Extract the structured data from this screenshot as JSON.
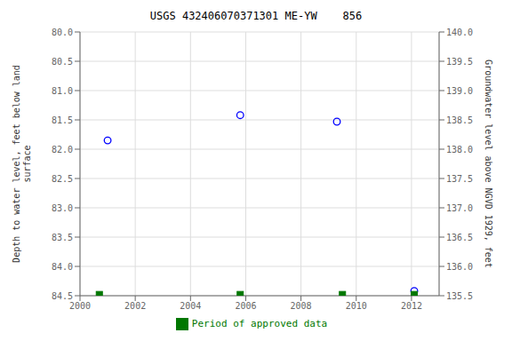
{
  "chart_data": {
    "type": "scatter",
    "title": "USGS 432406070371301 ME-YW    856",
    "y_label": "Depth to water level, feet below land\nsurface",
    "y2_label": "Groundwater level above NGVD 1929, feet",
    "xlim": [
      2000,
      2013
    ],
    "xticks": [
      2000,
      2002,
      2004,
      2006,
      2008,
      2010,
      2012
    ],
    "ylim": [
      84.5,
      80.0
    ],
    "yticks": [
      {
        "value": 80.0,
        "label": "80.0"
      },
      80.5,
      {
        "value": 81.0,
        "label": "81.0"
      },
      81.5,
      {
        "value": 82.0,
        "label": "82.0"
      },
      82.5,
      {
        "value": 83.0,
        "label": "83.0"
      },
      83.5,
      {
        "value": 84.0,
        "label": "84.0"
      },
      84.5
    ],
    "y2lim": [
      135.5,
      140.0
    ],
    "y2ticks": [
      {
        "value": 140.0,
        "label": "140.0"
      },
      139.5,
      {
        "value": 139.0,
        "label": "139.0"
      },
      138.5,
      {
        "value": 138.0,
        "label": "138.0"
      },
      137.5,
      {
        "value": 137.0,
        "label": "137.0"
      },
      136.5,
      {
        "value": 136.0,
        "label": "136.0"
      },
      135.5
    ],
    "grid": true,
    "legend": "bottom",
    "series": [
      {
        "color": "#0000ff",
        "marker": "hollow_circle",
        "x": [
          2001.0,
          2005.8,
          2009.3,
          2012.1
        ],
        "values": [
          81.85,
          81.42,
          81.53,
          84.42
        ]
      },
      {
        "name": "Period of approved data",
        "color": "#007700",
        "marker": "square",
        "x": [
          2000.7,
          2005.8,
          2009.5,
          2012.1
        ],
        "values": [
          84.48,
          84.48,
          84.48,
          84.48
        ]
      }
    ]
  }
}
